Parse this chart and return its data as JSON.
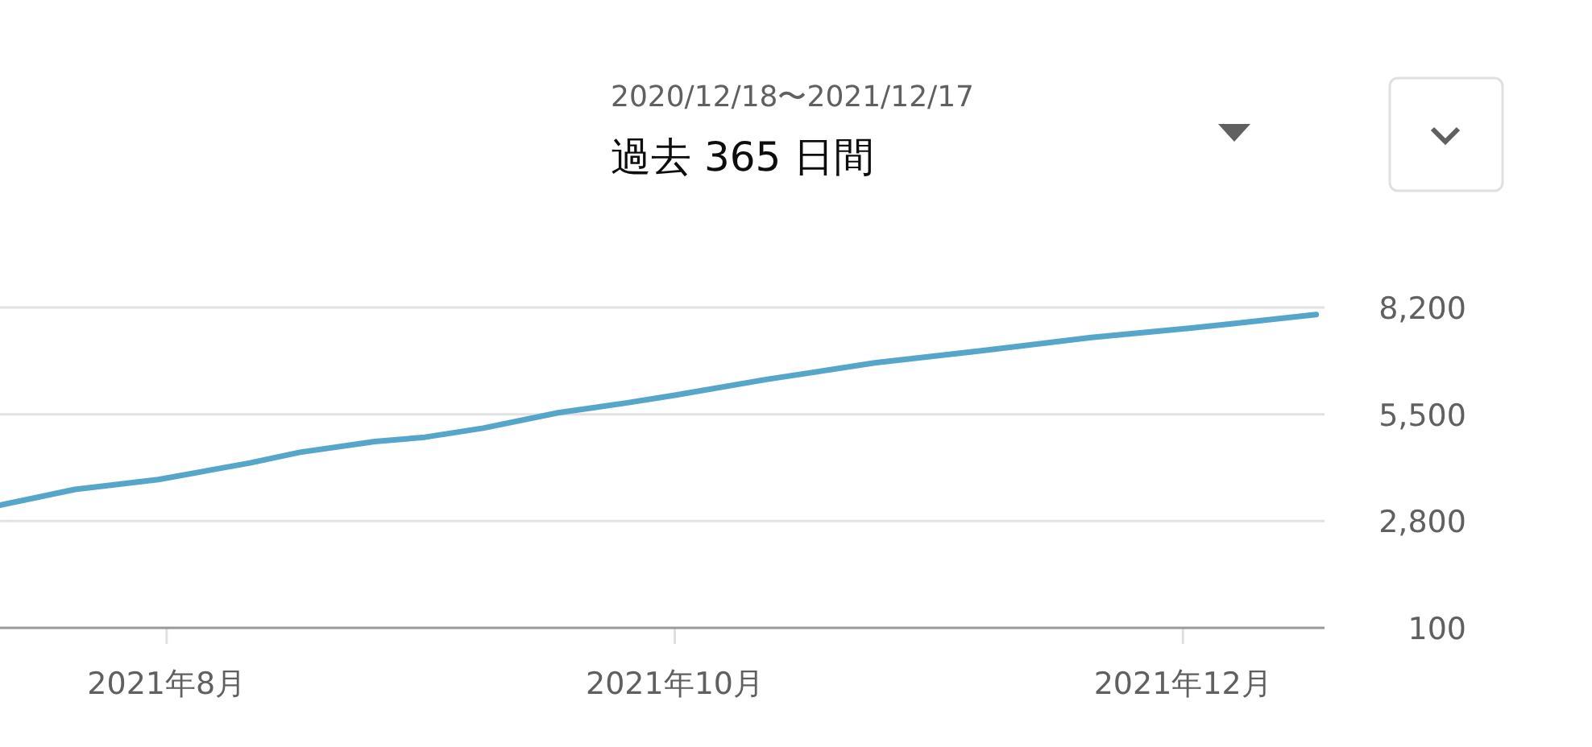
{
  "chart_data": {
    "type": "line",
    "title": "過去 365 日間",
    "subtitle": "2020/12/18〜2021/12/17",
    "x": [
      "2021-07-12",
      "2021-07-21",
      "2021-07-31",
      "2021-08-11",
      "2021-08-17",
      "2021-08-26",
      "2021-09-01",
      "2021-09-08",
      "2021-09-17",
      "2021-09-25",
      "2021-10-01",
      "2021-10-12",
      "2021-10-25",
      "2021-11-07",
      "2021-11-20",
      "2021-12-02",
      "2021-12-17"
    ],
    "series": [
      {
        "color": "#55a6ca",
        "values": [
          3200,
          3600,
          3850,
          4270,
          4540,
          4810,
          4920,
          5150,
          5540,
          5780,
          5980,
          6380,
          6800,
          7110,
          7440,
          7680,
          8020
        ]
      }
    ],
    "xlim": [
      "2021-07-12",
      "2021-12-18"
    ],
    "xticks": [
      {
        "value": "2021-08-01",
        "label": "2021年8月"
      },
      {
        "value": "2021-10-01",
        "label": "2021年10月"
      },
      {
        "value": "2021-12-01",
        "label": "2021年12月"
      }
    ],
    "ylim": [
      100,
      8200
    ],
    "yticks": [
      100,
      {
        "value": 2800,
        "label": "2,800"
      },
      {
        "value": 5500,
        "label": "5,500"
      },
      {
        "value": 8200,
        "label": "8,200"
      }
    ],
    "grid": "y"
  }
}
